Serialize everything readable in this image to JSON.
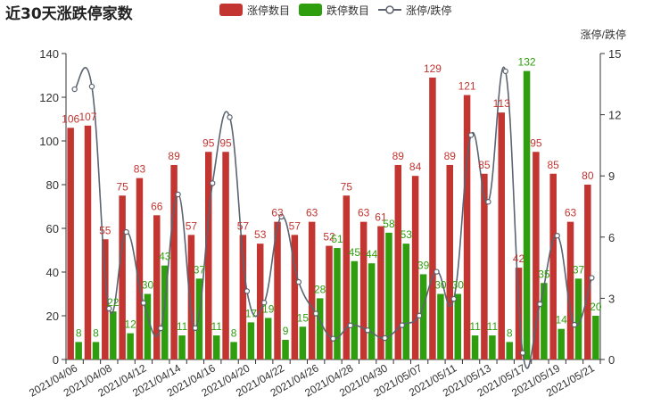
{
  "chart_data": {
    "type": "bar",
    "title": "近30天涨跌停家数",
    "legend": {
      "placement": "top-center",
      "items": [
        "涨停数目",
        "跌停数目",
        "涨停/跌停"
      ]
    },
    "colors": {
      "up": "#c23531",
      "down": "#2f9e0e",
      "ratio_line": "#5b6470",
      "ratio_point_fill": "#ffffff",
      "axis": "#333333"
    },
    "categories": [
      "2021/04/06",
      "2021/04/07",
      "2021/04/08",
      "2021/04/09",
      "2021/04/12",
      "2021/04/13",
      "2021/04/14",
      "2021/04/15",
      "2021/04/16",
      "2021/04/19",
      "2021/04/20",
      "2021/04/21",
      "2021/04/22",
      "2021/04/23",
      "2021/04/26",
      "2021/04/27",
      "2021/04/28",
      "2021/04/29",
      "2021/04/30",
      "2021/05/06",
      "2021/05/07",
      "2021/05/10",
      "2021/05/11",
      "2021/05/12",
      "2021/05/13",
      "2021/05/14",
      "2021/05/17",
      "2021/05/18",
      "2021/05/19",
      "2021/05/20",
      "2021/05/21"
    ],
    "x_tick_labels": [
      "2021/04/06",
      "2021/04/08",
      "2021/04/12",
      "2021/04/14",
      "2021/04/16",
      "2021/04/20",
      "2021/04/22",
      "2021/04/26",
      "2021/04/28",
      "2021/04/30",
      "2021/05/07",
      "2021/05/11",
      "2021/05/13",
      "2021/05/17",
      "2021/05/19",
      "2021/05/21"
    ],
    "series": [
      {
        "name": "涨停数目",
        "axis": "left",
        "values": [
          106,
          107,
          55,
          75,
          83,
          66,
          89,
          57,
          95,
          95,
          57,
          53,
          63,
          57,
          63,
          52,
          75,
          63,
          61,
          89,
          84,
          129,
          89,
          121,
          85,
          113,
          42,
          95,
          85,
          63,
          80
        ]
      },
      {
        "name": "跌停数目",
        "axis": "left",
        "values": [
          8,
          8,
          22,
          12,
          30,
          43,
          11,
          37,
          11,
          8,
          17,
          19,
          9,
          15,
          28,
          51,
          45,
          44,
          58,
          53,
          39,
          30,
          30,
          11,
          11,
          8,
          132,
          35,
          14,
          37,
          20
        ]
      },
      {
        "name": "涨停/跌停",
        "axis": "right",
        "type": "line",
        "smooth": true,
        "values": [
          13.25,
          13.38,
          2.5,
          6.25,
          2.77,
          1.53,
          8.09,
          1.54,
          8.64,
          11.88,
          3.35,
          2.79,
          7.0,
          3.8,
          2.25,
          1.02,
          1.67,
          1.43,
          1.05,
          1.68,
          2.15,
          4.3,
          2.97,
          11.0,
          7.73,
          14.13,
          0.32,
          2.71,
          6.07,
          1.7,
          4.0
        ]
      }
    ],
    "y_left": {
      "min": 0,
      "max": 140,
      "ticks": [
        0,
        20,
        40,
        60,
        80,
        100,
        120,
        140
      ]
    },
    "y_right": {
      "name": "涨停/跌停",
      "min": 0,
      "max": 15,
      "ticks": [
        0,
        3,
        6,
        9,
        12,
        15
      ]
    },
    "grid": false
  }
}
